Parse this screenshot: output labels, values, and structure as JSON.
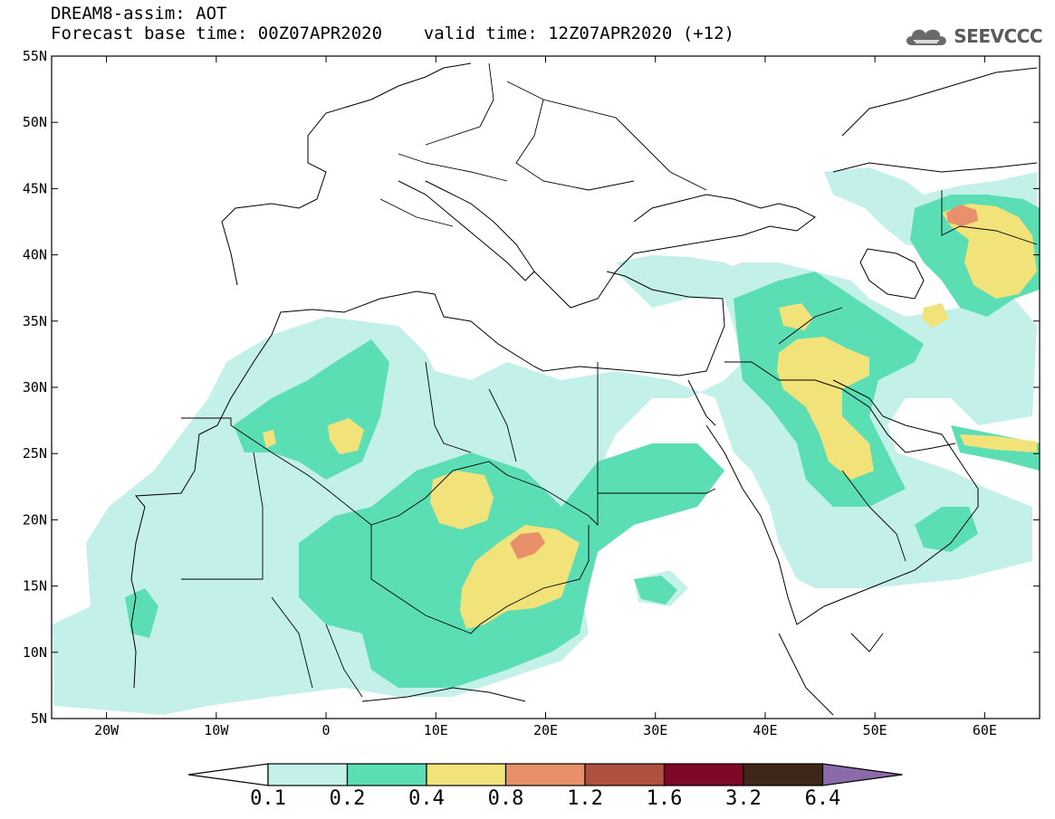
{
  "header": {
    "line1": "DREAM8-assim: AOT",
    "line2": "Forecast base time: 00Z07APR2020    valid time: 12Z07APR2020 (+12)"
  },
  "logo": {
    "text": "SEEVCCC",
    "icon": "cloud-icon"
  },
  "map": {
    "extent": {
      "lon_min": -25,
      "lon_max": 65,
      "lat_min": 5,
      "lat_max": 55
    },
    "lat_ticks": [
      {
        "lat": 55,
        "label": "55N"
      },
      {
        "lat": 50,
        "label": "50N"
      },
      {
        "lat": 45,
        "label": "45N"
      },
      {
        "lat": 40,
        "label": "40N"
      },
      {
        "lat": 35,
        "label": "35N"
      },
      {
        "lat": 30,
        "label": "30N"
      },
      {
        "lat": 25,
        "label": "25N"
      },
      {
        "lat": 20,
        "label": "20N"
      },
      {
        "lat": 15,
        "label": "15N"
      },
      {
        "lat": 10,
        "label": "10N"
      },
      {
        "lat": 5,
        "label": "5N"
      }
    ],
    "lon_ticks": [
      {
        "lon": -20,
        "label": "20W"
      },
      {
        "lon": -10,
        "label": "10W"
      },
      {
        "lon": 0,
        "label": "0"
      },
      {
        "lon": 10,
        "label": "10E"
      },
      {
        "lon": 20,
        "label": "20E"
      },
      {
        "lon": 30,
        "label": "30E"
      },
      {
        "lon": 40,
        "label": "40E"
      },
      {
        "lon": 50,
        "label": "50E"
      },
      {
        "lon": 60,
        "label": "60E"
      }
    ]
  },
  "colorbar": {
    "levels": [
      "0.1",
      "0.2",
      "0.4",
      "0.8",
      "1.2",
      "1.6",
      "3.2",
      "6.4"
    ],
    "colors": [
      "#ffffff",
      "#c4f0ea",
      "#5cdeb4",
      "#f2e27a",
      "#e8906a",
      "#b0503e",
      "#7e0826",
      "#3e2618",
      "#8a6aa8"
    ]
  }
}
